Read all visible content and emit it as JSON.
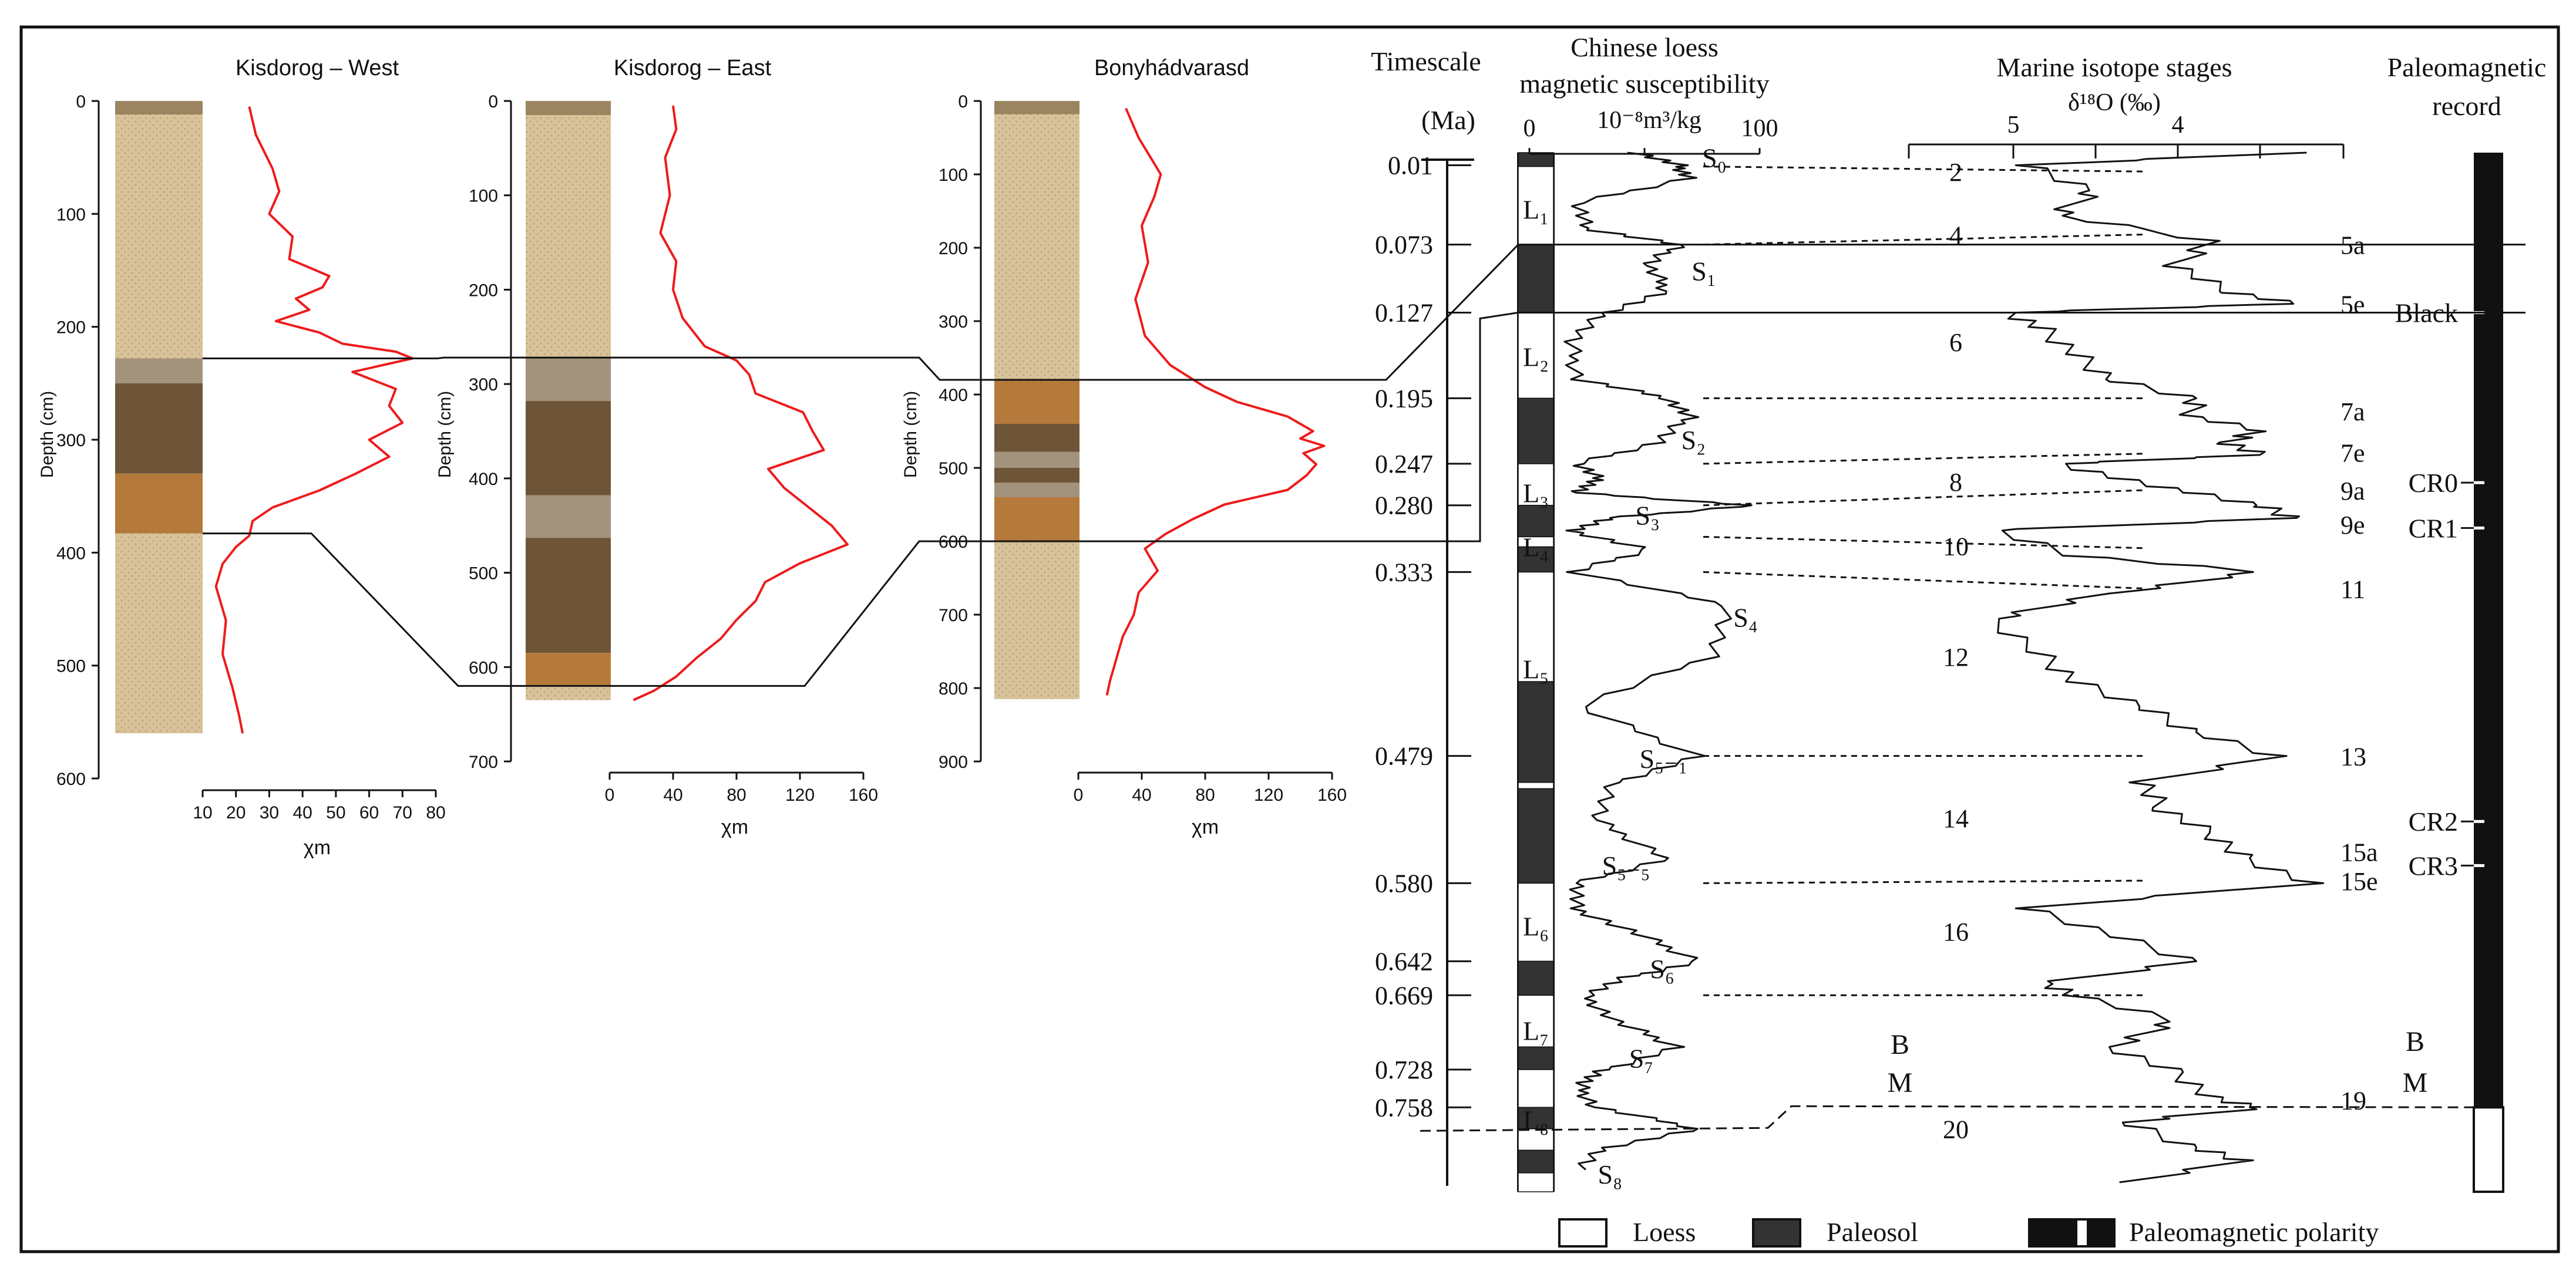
{
  "chart_data": {
    "type": "composite-stratigraphic-correlation",
    "profiles": [
      {
        "title": "Kisdorog – West",
        "ylabel": "Depth (cm)",
        "xlabel": "χm",
        "ylim": [
          0,
          600
        ],
        "y_ticks": [
          0,
          100,
          200,
          300,
          400,
          500,
          600
        ],
        "xlim": [
          10,
          80
        ],
        "x_ticks": [
          10,
          20,
          30,
          40,
          50,
          60,
          70,
          80
        ],
        "column_bottom": 560,
        "layers": [
          {
            "top": 0,
            "bottom": 12,
            "kind": "topsoil"
          },
          {
            "top": 12,
            "bottom": 228,
            "kind": "loess"
          },
          {
            "top": 228,
            "bottom": 250,
            "kind": "transition"
          },
          {
            "top": 250,
            "bottom": 330,
            "kind": "paleosol-dark"
          },
          {
            "top": 330,
            "bottom": 383,
            "kind": "paleosol-orange"
          },
          {
            "top": 383,
            "bottom": 560,
            "kind": "loess"
          }
        ],
        "depth": [
          5,
          30,
          60,
          80,
          100,
          120,
          140,
          155,
          165,
          175,
          185,
          195,
          205,
          215,
          222,
          228,
          240,
          255,
          270,
          285,
          300,
          315,
          330,
          345,
          360,
          372,
          385,
          395,
          410,
          430,
          460,
          490,
          520,
          545,
          560
        ],
        "chi": [
          24,
          26,
          31,
          33,
          30,
          37,
          36,
          48,
          46,
          38,
          42,
          32,
          45,
          52,
          68,
          73,
          55,
          68,
          66,
          70,
          60,
          66,
          56,
          45,
          31,
          25,
          24,
          20,
          16,
          14,
          17,
          16,
          19,
          21,
          22
        ]
      },
      {
        "title": "Kisdorog – East",
        "ylabel": "Depth (cm)",
        "xlabel": "χm",
        "ylim": [
          0,
          700
        ],
        "y_ticks": [
          0,
          100,
          200,
          300,
          400,
          500,
          600,
          700
        ],
        "xlim": [
          0,
          160
        ],
        "x_ticks": [
          0,
          40,
          80,
          120,
          160
        ],
        "column_bottom": 635,
        "layers": [
          {
            "top": 0,
            "bottom": 15,
            "kind": "topsoil"
          },
          {
            "top": 15,
            "bottom": 272,
            "kind": "loess"
          },
          {
            "top": 272,
            "bottom": 318,
            "kind": "transition"
          },
          {
            "top": 318,
            "bottom": 418,
            "kind": "paleosol-dark"
          },
          {
            "top": 418,
            "bottom": 463,
            "kind": "transition"
          },
          {
            "top": 463,
            "bottom": 585,
            "kind": "paleosol-dark"
          },
          {
            "top": 585,
            "bottom": 620,
            "kind": "paleosol-orange"
          },
          {
            "top": 620,
            "bottom": 635,
            "kind": "loess"
          }
        ],
        "depth": [
          5,
          30,
          60,
          100,
          140,
          170,
          200,
          230,
          260,
          275,
          290,
          310,
          330,
          350,
          370,
          390,
          410,
          430,
          450,
          470,
          490,
          510,
          530,
          550,
          570,
          590,
          610,
          625,
          635
        ],
        "chi": [
          40,
          42,
          35,
          38,
          32,
          42,
          40,
          46,
          60,
          80,
          88,
          92,
          122,
          128,
          135,
          100,
          110,
          125,
          140,
          150,
          120,
          98,
          92,
          80,
          70,
          55,
          42,
          28,
          15
        ]
      },
      {
        "title": "Bonyhádvarasd",
        "ylabel": "Depth (cm)",
        "xlabel": "χm",
        "ylim": [
          0,
          900
        ],
        "y_ticks": [
          0,
          100,
          200,
          300,
          400,
          500,
          600,
          700,
          800,
          900
        ],
        "xlim": [
          0,
          160
        ],
        "x_ticks": [
          0,
          40,
          80,
          120,
          160
        ],
        "column_bottom": 815,
        "layers": [
          {
            "top": 0,
            "bottom": 18,
            "kind": "topsoil"
          },
          {
            "top": 18,
            "bottom": 380,
            "kind": "loess"
          },
          {
            "top": 380,
            "bottom": 440,
            "kind": "paleosol-orange"
          },
          {
            "top": 440,
            "bottom": 478,
            "kind": "paleosol-dark"
          },
          {
            "top": 478,
            "bottom": 500,
            "kind": "transition"
          },
          {
            "top": 500,
            "bottom": 520,
            "kind": "paleosol-dark"
          },
          {
            "top": 520,
            "bottom": 540,
            "kind": "transition"
          },
          {
            "top": 540,
            "bottom": 600,
            "kind": "paleosol-orange"
          },
          {
            "top": 600,
            "bottom": 815,
            "kind": "loess"
          }
        ],
        "depth": [
          10,
          50,
          100,
          130,
          170,
          220,
          270,
          320,
          360,
          390,
          410,
          430,
          450,
          460,
          470,
          480,
          495,
          510,
          530,
          550,
          570,
          590,
          610,
          640,
          670,
          700,
          730,
          760,
          790,
          810
        ],
        "chi": [
          30,
          38,
          52,
          48,
          40,
          44,
          36,
          42,
          58,
          80,
          100,
          132,
          148,
          140,
          155,
          142,
          150,
          144,
          132,
          92,
          72,
          55,
          42,
          50,
          38,
          35,
          28,
          24,
          20,
          18
        ]
      }
    ],
    "timescale": {
      "title": "Timescale",
      "unit": "(Ma)",
      "ages": [
        "0.01",
        "0.073",
        "0.127",
        "0.195",
        "0.247",
        "0.280",
        "0.333",
        "0.479",
        "0.580",
        "0.642",
        "0.669",
        "0.728",
        "0.758"
      ]
    },
    "loess_susceptibility": {
      "title_line1": "Chinese loess",
      "title_line2": "magnetic susceptibility",
      "unit": "10⁻⁸m³/kg",
      "xlim": [
        0,
        100
      ],
      "x_tick_labels": [
        "0",
        "100"
      ],
      "time_nodes": [
        0.0,
        0.01,
        0.02,
        0.04,
        0.06,
        0.073,
        0.09,
        0.11,
        0.127,
        0.15,
        0.18,
        0.195,
        0.21,
        0.23,
        0.247,
        0.26,
        0.27,
        0.28,
        0.29,
        0.3,
        0.315,
        0.333,
        0.36,
        0.4,
        0.44,
        0.479,
        0.5,
        0.53,
        0.56,
        0.58,
        0.6,
        0.62,
        0.642,
        0.655,
        0.669,
        0.69,
        0.71,
        0.728,
        0.74,
        0.758,
        0.775,
        0.79,
        0.81
      ],
      "susceptibility": [
        40,
        60,
        65,
        12,
        15,
        60,
        45,
        55,
        25,
        8,
        12,
        55,
        65,
        50,
        12,
        22,
        10,
        95,
        28,
        8,
        45,
        10,
        85,
        75,
        12,
        70,
        30,
        20,
        55,
        12,
        10,
        40,
        70,
        35,
        15,
        30,
        60,
        25,
        12,
        20,
        70,
        25,
        10
      ],
      "curve_series": "Chinese loess"
    },
    "soil_labels": [
      {
        "text": "S₀",
        "age": 0.003
      },
      {
        "text": "S₁",
        "age": 0.093
      },
      {
        "text": "S₂",
        "age": 0.227
      },
      {
        "text": "S₃",
        "age": 0.287
      },
      {
        "text": "S₄",
        "age": 0.368
      },
      {
        "text": "S₅₋₁",
        "age": 0.48
      },
      {
        "text": "S₅₋₅",
        "age": 0.565
      },
      {
        "text": "S₆",
        "age": 0.647
      },
      {
        "text": "S₇",
        "age": 0.718
      },
      {
        "text": "S₈",
        "age": 0.81
      }
    ],
    "column_labels": [
      {
        "text": "L₁",
        "age": 0.045
      },
      {
        "text": "L₂",
        "age": 0.162
      },
      {
        "text": "L₃",
        "age": 0.27
      },
      {
        "text": "L₄",
        "age": 0.313
      },
      {
        "text": "L₅",
        "age": 0.41
      },
      {
        "text": "L₆",
        "age": 0.614
      },
      {
        "text": "L₇",
        "age": 0.697
      },
      {
        "text": "L₈",
        "age": 0.768
      }
    ],
    "stratigraphic_column": [
      {
        "top": 0.0,
        "bottom": 0.011,
        "unit": "S0"
      },
      {
        "top": 0.011,
        "bottom": 0.073,
        "unit": "L1"
      },
      {
        "top": 0.073,
        "bottom": 0.127,
        "unit": "S1"
      },
      {
        "top": 0.127,
        "bottom": 0.195,
        "unit": "L2"
      },
      {
        "top": 0.195,
        "bottom": 0.247,
        "unit": "S2"
      },
      {
        "top": 0.247,
        "bottom": 0.28,
        "unit": "L3"
      },
      {
        "top": 0.28,
        "bottom": 0.305,
        "unit": "S3"
      },
      {
        "top": 0.305,
        "bottom": 0.313,
        "unit": "L4"
      },
      {
        "top": 0.313,
        "bottom": 0.333,
        "unit": "S4"
      },
      {
        "top": 0.333,
        "bottom": 0.42,
        "unit": "L5"
      },
      {
        "top": 0.42,
        "bottom": 0.5,
        "unit": "S5-1"
      },
      {
        "top": 0.5,
        "bottom": 0.505,
        "unit": "L"
      },
      {
        "top": 0.505,
        "bottom": 0.58,
        "unit": "S5-5"
      },
      {
        "top": 0.58,
        "bottom": 0.642,
        "unit": "L6"
      },
      {
        "top": 0.642,
        "bottom": 0.669,
        "unit": "S6"
      },
      {
        "top": 0.669,
        "bottom": 0.71,
        "unit": "L7"
      },
      {
        "top": 0.71,
        "bottom": 0.728,
        "unit": "S7"
      },
      {
        "top": 0.728,
        "bottom": 0.758,
        "unit": "L"
      },
      {
        "top": 0.758,
        "bottom": 0.775,
        "unit": "S"
      },
      {
        "top": 0.775,
        "bottom": 0.792,
        "unit": "L8"
      },
      {
        "top": 0.792,
        "bottom": 0.81,
        "unit": "S8"
      },
      {
        "top": 0.81,
        "bottom": 0.825,
        "unit": "L"
      }
    ],
    "marine_isotope": {
      "title": "Marine isotope stages",
      "unit": "δ¹⁸O (‰)",
      "x_tick_labels": [
        "5",
        "4"
      ],
      "x_tick_values": [
        5,
        4
      ],
      "xlim": [
        5.6,
        3.0
      ],
      "time_nodes": [
        0.0,
        0.01,
        0.03,
        0.05,
        0.07,
        0.09,
        0.11,
        0.12,
        0.127,
        0.14,
        0.16,
        0.18,
        0.195,
        0.21,
        0.22,
        0.23,
        0.24,
        0.247,
        0.26,
        0.27,
        0.28,
        0.29,
        0.3,
        0.32,
        0.333,
        0.35,
        0.37,
        0.4,
        0.42,
        0.44,
        0.46,
        0.479,
        0.5,
        0.52,
        0.54,
        0.56,
        0.58,
        0.6,
        0.62,
        0.642,
        0.66,
        0.669,
        0.69,
        0.71,
        0.73,
        0.75,
        0.758,
        0.77,
        0.79,
        0.8,
        0.82
      ],
      "d18O": [
        3.3,
        4.9,
        4.5,
        4.7,
        3.8,
        4.0,
        3.7,
        3.3,
        5.0,
        4.8,
        4.6,
        4.4,
        3.9,
        3.9,
        3.5,
        3.7,
        3.5,
        4.7,
        4.3,
        3.9,
        3.5,
        3.3,
        5.1,
        4.6,
        3.5,
        4.4,
        5.1,
        4.8,
        4.6,
        4.2,
        3.9,
        3.4,
        4.2,
        4.1,
        3.8,
        3.6,
        3.2,
        4.9,
        4.4,
        3.9,
        4.8,
        4.6,
        4.0,
        4.4,
        4.0,
        3.8,
        3.5,
        4.3,
        3.9,
        3.6,
        4.4
      ]
    },
    "mis_labels": [
      {
        "text": "2",
        "age": 0.015,
        "side": "mid"
      },
      {
        "text": "4",
        "age": 0.065,
        "side": "mid"
      },
      {
        "text": "5a",
        "age": 0.073,
        "side": "right"
      },
      {
        "text": "5e",
        "age": 0.12,
        "side": "right"
      },
      {
        "text": "6",
        "age": 0.15,
        "side": "mid"
      },
      {
        "text": "7a",
        "age": 0.205,
        "side": "right"
      },
      {
        "text": "7e",
        "age": 0.238,
        "side": "right"
      },
      {
        "text": "8",
        "age": 0.261,
        "side": "mid"
      },
      {
        "text": "9a",
        "age": 0.268,
        "side": "right"
      },
      {
        "text": "9e",
        "age": 0.295,
        "side": "right"
      },
      {
        "text": "10",
        "age": 0.312,
        "side": "mid"
      },
      {
        "text": "11",
        "age": 0.346,
        "side": "right"
      },
      {
        "text": "12",
        "age": 0.4,
        "side": "mid"
      },
      {
        "text": "13",
        "age": 0.479,
        "side": "right"
      },
      {
        "text": "14",
        "age": 0.528,
        "side": "mid"
      },
      {
        "text": "15a",
        "age": 0.555,
        "side": "right"
      },
      {
        "text": "15e",
        "age": 0.578,
        "side": "right"
      },
      {
        "text": "16",
        "age": 0.618,
        "side": "mid"
      },
      {
        "text": "19",
        "age": 0.752,
        "side": "right"
      },
      {
        "text": "20",
        "age": 0.775,
        "side": "mid"
      }
    ],
    "paleomagnetic": {
      "title_line1": "Paleomagnetic",
      "title_line2": "record",
      "event_labels": [
        {
          "text": "Black",
          "age": 0.127
        },
        {
          "text": "CR0",
          "age": 0.262
        },
        {
          "text": "CR1",
          "age": 0.298
        },
        {
          "text": "CR2",
          "age": 0.531
        },
        {
          "text": "CR3",
          "age": 0.566
        }
      ],
      "tick_ages": [
        0.127,
        0.262,
        0.298,
        0.531,
        0.566
      ],
      "boundary_age": 0.758,
      "boundary_top_label": "B",
      "boundary_bottom_label": "M",
      "normal_polarity_until": 0.758
    },
    "legend": {
      "loess": "Loess",
      "paleosol": "Paleosol",
      "polarity": "Paleomagnetic polarity"
    },
    "colors": {
      "curve": "#ee1b1b",
      "loess": "#d8c299",
      "loess_dots": "#b89d6e",
      "paleosol_dark": "#6f5538",
      "paleosol_orange": "#b57a3b",
      "transition": "#a3927c",
      "topsoil": "#9b8460",
      "ink": "#111111",
      "column_dark": "#333333"
    }
  }
}
